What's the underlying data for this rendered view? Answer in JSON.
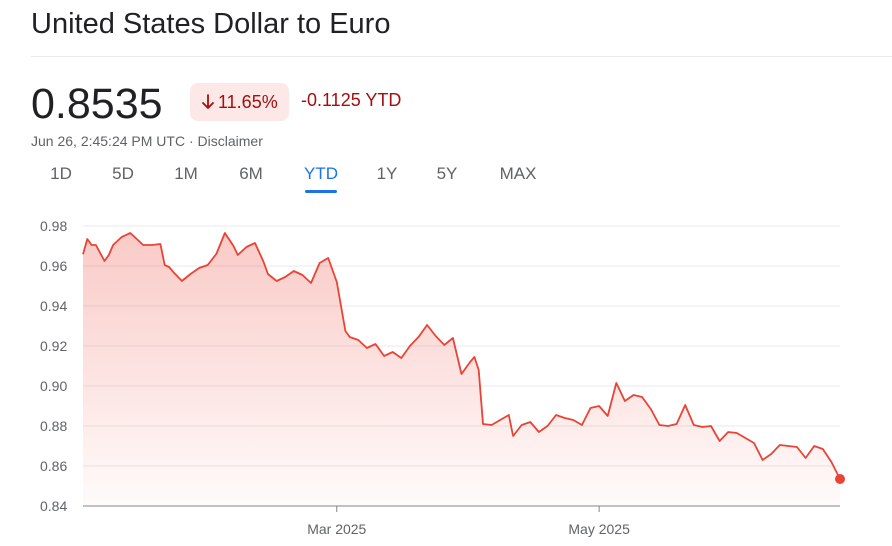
{
  "header": {
    "title": "United States Dollar to Euro"
  },
  "quote": {
    "price": "0.8535",
    "percent_change": "11.65%",
    "absolute_change": "-0.1125 YTD",
    "direction_icon": "arrow-down-icon",
    "timestamp": "Jun 26, 2:45:24 PM UTC",
    "separator": " · ",
    "disclaimer": "Disclaimer"
  },
  "tabs": [
    {
      "label": "1D"
    },
    {
      "label": "5D"
    },
    {
      "label": "1M"
    },
    {
      "label": "6M"
    },
    {
      "label": "YTD",
      "active": true
    },
    {
      "label": "1Y"
    },
    {
      "label": "5Y"
    },
    {
      "label": "MAX"
    }
  ],
  "colors": {
    "line": "#ea4335",
    "negative": "#a50e0e",
    "badge_bg": "#fce8e6",
    "accent": "#1a73e8",
    "grid": "#e8eaed",
    "axis_text": "#5f6368"
  },
  "chart_data": {
    "type": "area",
    "x_axis": "date",
    "x_ticks": [
      {
        "label": "Mar 2025",
        "date": "2025-03-01"
      },
      {
        "label": "May 2025",
        "date": "2025-05-01"
      }
    ],
    "ylim": [
      0.84,
      0.98
    ],
    "y_ticks": [
      "0.98",
      "0.96",
      "0.94",
      "0.92",
      "0.90",
      "0.88",
      "0.86",
      "0.84"
    ],
    "grid": true,
    "x": [
      "2025-01-01",
      "2025-01-02",
      "2025-01-03",
      "2025-01-04",
      "2025-01-06",
      "2025-01-07",
      "2025-01-08",
      "2025-01-10",
      "2025-01-12",
      "2025-01-14",
      "2025-01-15",
      "2025-01-17",
      "2025-01-19",
      "2025-01-20",
      "2025-01-21",
      "2025-01-22",
      "2025-01-24",
      "2025-01-26",
      "2025-01-28",
      "2025-01-30",
      "2025-02-01",
      "2025-02-03",
      "2025-02-05",
      "2025-02-06",
      "2025-02-08",
      "2025-02-10",
      "2025-02-12",
      "2025-02-13",
      "2025-02-15",
      "2025-02-17",
      "2025-02-19",
      "2025-02-21",
      "2025-02-23",
      "2025-02-25",
      "2025-02-27",
      "2025-03-01",
      "2025-03-03",
      "2025-03-04",
      "2025-03-06",
      "2025-03-08",
      "2025-03-10",
      "2025-03-12",
      "2025-03-14",
      "2025-03-16",
      "2025-03-18",
      "2025-03-20",
      "2025-03-22",
      "2025-03-24",
      "2025-03-26",
      "2025-03-28",
      "2025-03-30",
      "2025-04-01",
      "2025-04-02",
      "2025-04-03",
      "2025-04-04",
      "2025-04-06",
      "2025-04-08",
      "2025-04-10",
      "2025-04-11",
      "2025-04-13",
      "2025-04-15",
      "2025-04-17",
      "2025-04-19",
      "2025-04-21",
      "2025-04-23",
      "2025-04-25",
      "2025-04-27",
      "2025-04-29",
      "2025-05-01",
      "2025-05-03",
      "2025-05-05",
      "2025-05-07",
      "2025-05-09",
      "2025-05-11",
      "2025-05-12",
      "2025-05-13",
      "2025-05-15",
      "2025-05-17",
      "2025-05-19",
      "2025-05-21",
      "2025-05-23",
      "2025-05-25",
      "2025-05-27",
      "2025-05-29",
      "2025-05-31",
      "2025-06-02",
      "2025-06-04",
      "2025-06-06",
      "2025-06-08",
      "2025-06-10",
      "2025-06-12",
      "2025-06-14",
      "2025-06-16",
      "2025-06-18",
      "2025-06-20",
      "2025-06-22",
      "2025-06-24",
      "2025-06-26"
    ],
    "series": [
      {
        "values": [
          0.9659,
          0.9735,
          0.9705,
          0.9705,
          0.9625,
          0.9655,
          0.9705,
          0.9745,
          0.9765,
          0.9725,
          0.9705,
          0.9705,
          0.971,
          0.9605,
          0.9595,
          0.957,
          0.9525,
          0.956,
          0.959,
          0.9605,
          0.966,
          0.9765,
          0.97,
          0.9655,
          0.9695,
          0.9715,
          0.962,
          0.956,
          0.9525,
          0.9545,
          0.9575,
          0.9555,
          0.9515,
          0.9615,
          0.964,
          0.952,
          0.9275,
          0.9245,
          0.923,
          0.919,
          0.921,
          0.915,
          0.917,
          0.914,
          0.92,
          0.9245,
          0.9305,
          0.925,
          0.9205,
          0.924,
          0.906,
          0.912,
          0.9145,
          0.908,
          0.881,
          0.8805,
          0.883,
          0.8855,
          0.875,
          0.8805,
          0.882,
          0.877,
          0.88,
          0.8855,
          0.884,
          0.883,
          0.8805,
          0.889,
          0.89,
          0.885,
          0.9015,
          0.8925,
          0.8955,
          0.8945,
          0.8915,
          0.8885,
          0.8805,
          0.88,
          0.881,
          0.8905,
          0.8805,
          0.8795,
          0.88,
          0.8725,
          0.877,
          0.8765,
          0.874,
          0.8715,
          0.863,
          0.866,
          0.8705,
          0.87,
          0.8695,
          0.864,
          0.87,
          0.8685,
          0.862,
          0.8535
        ]
      }
    ]
  }
}
